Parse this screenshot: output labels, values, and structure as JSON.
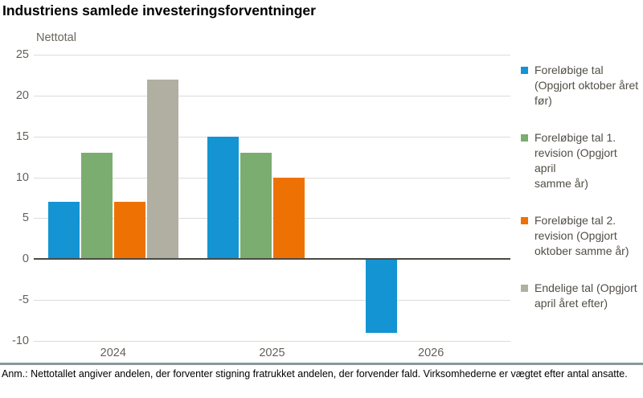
{
  "header": {
    "title": "Industriens samlede investeringsforventninger"
  },
  "chart_data": {
    "type": "bar",
    "title": "Industriens samlede investeringsforventninger",
    "ylabel": "Nettotal",
    "categories": [
      "2024",
      "2025",
      "2026"
    ],
    "series": [
      {
        "name": "Foreløbige tal (Opgjort oktober året før)",
        "legend_lines": [
          "Foreløbige tal",
          "(Opgjort oktober året",
          "før)"
        ],
        "color": "#1494D2",
        "values": [
          7,
          15,
          -9
        ]
      },
      {
        "name": "Foreløbige tal 1. revision (Opgjort april samme år)",
        "legend_lines": [
          "Foreløbige tal 1.",
          "revision (Opgjort april",
          "samme år)"
        ],
        "color": "#7BAD70",
        "values": [
          13,
          13,
          null
        ]
      },
      {
        "name": "Foreløbige tal 2. revision (Opgjort oktober samme år)",
        "legend_lines": [
          "Foreløbige tal 2.",
          "revision (Opgjort",
          "oktober samme år)"
        ],
        "color": "#EE7203",
        "values": [
          7,
          10,
          null
        ]
      },
      {
        "name": "Endelige tal (Opgjort april året efter)",
        "legend_lines": [
          "Endelige tal (Opgjort",
          "april året efter)"
        ],
        "color": "#B1AFA1",
        "values": [
          22,
          null,
          null
        ]
      }
    ],
    "ylim": [
      -10,
      25
    ],
    "yticks": [
      25,
      20,
      15,
      10,
      5,
      0,
      -5,
      -10
    ],
    "grid": true,
    "legend_position": "right",
    "colors": {
      "gridline": "#DCDCD6",
      "zero_line": "#4A4A45",
      "divider": "#87999B"
    }
  },
  "footnote": "Anm.: Nettotallet angiver andelen, der forventer stigning fratrukket andelen, der forvender fald. Virksomhederne er vægtet efter antal ansatte."
}
